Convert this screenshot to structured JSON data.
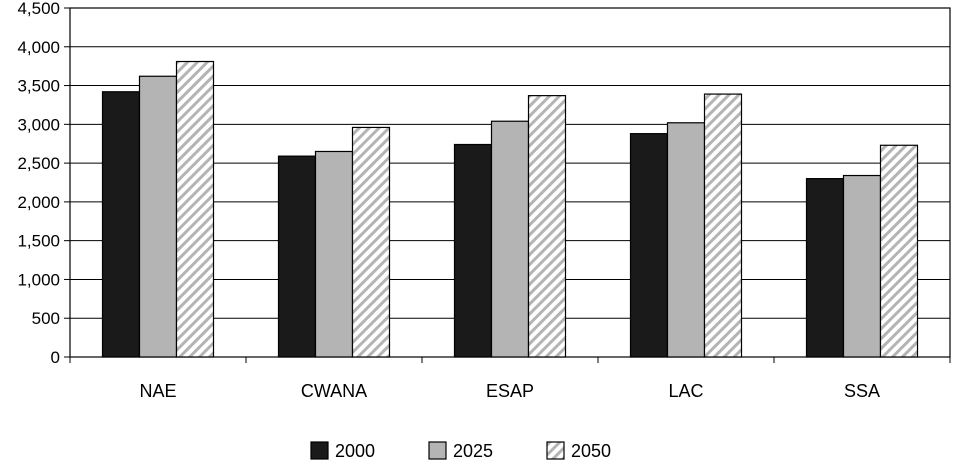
{
  "chart_data": {
    "type": "bar",
    "title": "",
    "xlabel": "",
    "ylabel": "",
    "categories": [
      "NAE",
      "CWANA",
      "ESAP",
      "LAC",
      "SSA"
    ],
    "series": [
      {
        "name": "2000",
        "values": [
          3420,
          2590,
          2740,
          2880,
          2300
        ],
        "color": "#1a1a1a",
        "pattern": "solid"
      },
      {
        "name": "2025",
        "values": [
          3620,
          2650,
          3040,
          3020,
          2340
        ],
        "color": "#b4b4b4",
        "pattern": "solid"
      },
      {
        "name": "2050",
        "values": [
          3810,
          2960,
          3370,
          3390,
          2730
        ],
        "color": "#ffffff",
        "pattern": "hatch"
      }
    ],
    "ylim": [
      0,
      4500
    ],
    "yticks": [
      0,
      500,
      1000,
      1500,
      2000,
      2500,
      3000,
      3500,
      4000,
      4500
    ],
    "ytick_labels": [
      "0",
      "500",
      "1,000",
      "1,500",
      "2,000",
      "2,500",
      "3,000",
      "3,500",
      "4,000",
      "4,500"
    ],
    "grid": true,
    "legend_position": "bottom"
  }
}
